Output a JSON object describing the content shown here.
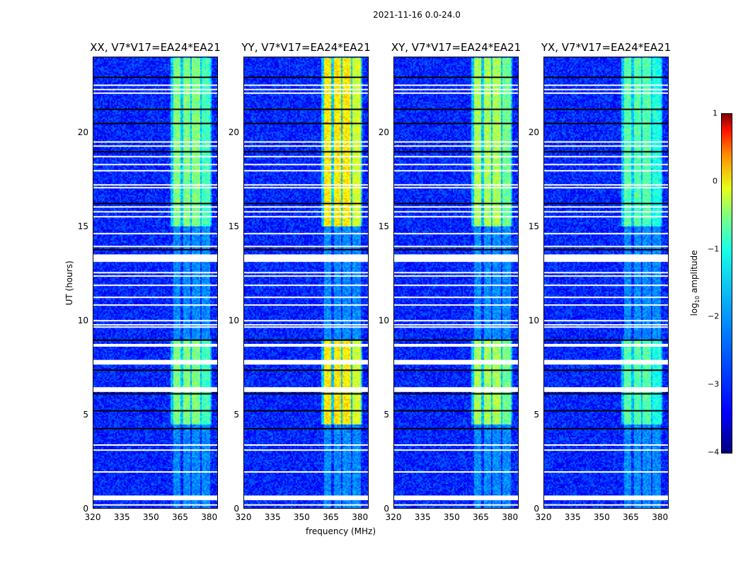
{
  "chart_data": {
    "type": "heatmap",
    "title": "2021-11-16 0.0-24.0",
    "xlabel": "frequency (MHz)",
    "ylabel": "UT (hours)",
    "xlim": [
      320,
      384.5
    ],
    "ylim": [
      0,
      24
    ],
    "xticks": [
      320,
      335,
      350,
      365,
      380
    ],
    "yticks": [
      0,
      5,
      10,
      15,
      20
    ],
    "panels": [
      {
        "title": "XX, V7*V17=EA24*EA21",
        "band_level": -1.5
      },
      {
        "title": "YY, V7*V17=EA24*EA21",
        "band_level": -0.8
      },
      {
        "title": "XY, V7*V17=EA24*EA21",
        "band_level": -1.3
      },
      {
        "title": "YX, V7*V17=EA24*EA21",
        "band_level": -1.7
      }
    ],
    "background_level": -3.2,
    "band_channels_mhz": [
      [
        361,
        365
      ],
      [
        366,
        370
      ],
      [
        371,
        375
      ],
      [
        376,
        380
      ]
    ],
    "active_periods_ut": [
      [
        15,
        24
      ],
      [
        4.5,
        9
      ]
    ],
    "flagged_thick_ut": [
      [
        13.1,
        13.5
      ],
      [
        7.65,
        7.9
      ],
      [
        8.6,
        8.75
      ],
      [
        6.2,
        6.45
      ],
      [
        0.45,
        0.7
      ]
    ],
    "flagged_lines_ut": [
      22.48,
      22.25,
      22.06,
      19.47,
      19.25,
      18.69,
      18.27,
      17.94,
      17.19,
      17.04,
      16.02,
      15.76,
      15.5,
      14.6,
      13.92,
      12.53,
      12.35,
      11.86,
      11.22,
      10.81,
      9.98,
      9.76,
      9.64,
      3.38,
      3.11,
      1.95,
      0.2
    ],
    "gap_lines_ut": [
      22.9,
      21.2,
      20.45,
      18.95,
      16.2,
      13.75,
      8.95,
      7.35,
      6.1,
      5.2,
      4.25
    ],
    "colorbar": {
      "label": "log10 amplitude",
      "label_main": "log",
      "label_sub": "10",
      "label_tail": " amplitude",
      "range": [
        -4,
        1
      ],
      "ticks": [
        "1",
        "0",
        "−1",
        "−2",
        "−3",
        "−4"
      ],
      "tick_values": [
        1,
        0,
        -1,
        -2,
        -3,
        -4
      ]
    }
  }
}
